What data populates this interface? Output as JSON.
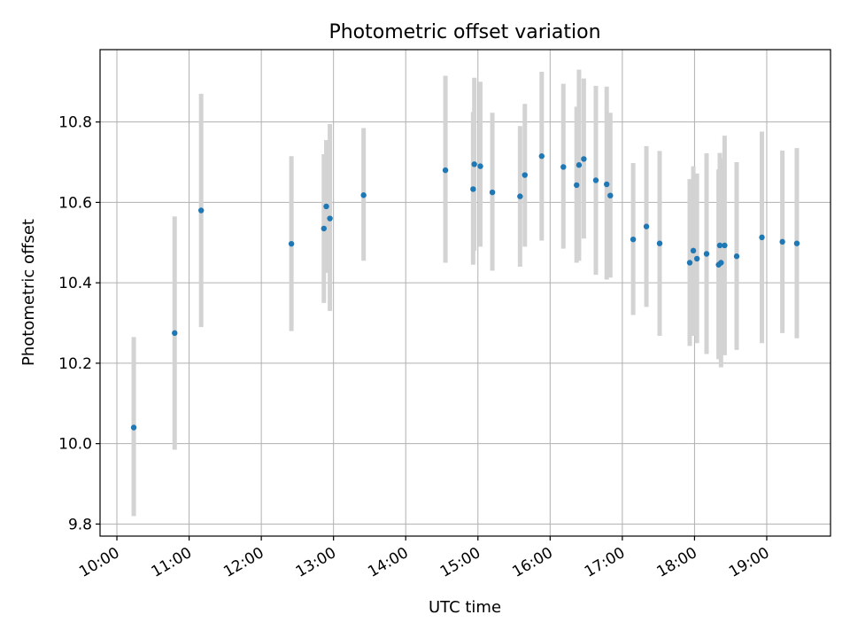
{
  "chart_data": {
    "type": "scatter",
    "title": "Photometric offset variation",
    "xlabel": "UTC time",
    "ylabel": "Photometric offset",
    "x_ticks": [
      "10:00",
      "11:00",
      "12:00",
      "13:00",
      "14:00",
      "15:00",
      "16:00",
      "17:00",
      "18:00",
      "19:00"
    ],
    "y_ticks": [
      "9.8",
      "10.0",
      "10.2",
      "10.4",
      "10.6",
      "10.8"
    ],
    "xlim": [
      "09:46",
      "19:53"
    ],
    "ylim": [
      9.77,
      10.98
    ],
    "grid": true,
    "colors": {
      "points": "#1f77b4",
      "error_bars": "#d3d3d3",
      "grid": "#b0b0b0"
    },
    "series": [
      {
        "points": [
          {
            "x": "10:14",
            "y": 10.04,
            "ylo": 9.82,
            "yhi": 10.265
          },
          {
            "x": "10:48",
            "y": 10.275,
            "ylo": 9.985,
            "yhi": 10.565
          },
          {
            "x": "11:10",
            "y": 10.58,
            "ylo": 10.29,
            "yhi": 10.87
          },
          {
            "x": "12:25",
            "y": 10.497,
            "ylo": 10.28,
            "yhi": 10.715
          },
          {
            "x": "12:52",
            "y": 10.535,
            "ylo": 10.35,
            "yhi": 10.72
          },
          {
            "x": "12:54",
            "y": 10.59,
            "ylo": 10.425,
            "yhi": 10.755
          },
          {
            "x": "12:57",
            "y": 10.56,
            "ylo": 10.33,
            "yhi": 10.795
          },
          {
            "x": "13:25",
            "y": 10.618,
            "ylo": 10.455,
            "yhi": 10.785
          },
          {
            "x": "14:33",
            "y": 10.68,
            "ylo": 10.45,
            "yhi": 10.915
          },
          {
            "x": "14:56",
            "y": 10.633,
            "ylo": 10.445,
            "yhi": 10.825
          },
          {
            "x": "14:57",
            "y": 10.695,
            "ylo": 10.48,
            "yhi": 10.91
          },
          {
            "x": "15:02",
            "y": 10.69,
            "ylo": 10.49,
            "yhi": 10.9
          },
          {
            "x": "15:12",
            "y": 10.625,
            "ylo": 10.43,
            "yhi": 10.823
          },
          {
            "x": "15:35",
            "y": 10.615,
            "ylo": 10.44,
            "yhi": 10.79
          },
          {
            "x": "15:39",
            "y": 10.668,
            "ylo": 10.49,
            "yhi": 10.845
          },
          {
            "x": "15:53",
            "y": 10.715,
            "ylo": 10.505,
            "yhi": 10.925
          },
          {
            "x": "16:11",
            "y": 10.688,
            "ylo": 10.485,
            "yhi": 10.895
          },
          {
            "x": "16:22",
            "y": 10.643,
            "ylo": 10.45,
            "yhi": 10.838
          },
          {
            "x": "16:24",
            "y": 10.693,
            "ylo": 10.455,
            "yhi": 10.93
          },
          {
            "x": "16:28",
            "y": 10.708,
            "ylo": 10.51,
            "yhi": 10.908
          },
          {
            "x": "16:38",
            "y": 10.655,
            "ylo": 10.42,
            "yhi": 10.89
          },
          {
            "x": "16:47",
            "y": 10.645,
            "ylo": 10.408,
            "yhi": 10.888
          },
          {
            "x": "16:50",
            "y": 10.617,
            "ylo": 10.413,
            "yhi": 10.823
          },
          {
            "x": "17:09",
            "y": 10.508,
            "ylo": 10.32,
            "yhi": 10.698
          },
          {
            "x": "17:20",
            "y": 10.54,
            "ylo": 10.34,
            "yhi": 10.74
          },
          {
            "x": "17:31",
            "y": 10.498,
            "ylo": 10.268,
            "yhi": 10.728
          },
          {
            "x": "17:56",
            "y": 10.45,
            "ylo": 10.243,
            "yhi": 10.658
          },
          {
            "x": "17:59",
            "y": 10.48,
            "ylo": 10.268,
            "yhi": 10.69
          },
          {
            "x": "18:02",
            "y": 10.46,
            "ylo": 10.25,
            "yhi": 10.672
          },
          {
            "x": "18:10",
            "y": 10.472,
            "ylo": 10.223,
            "yhi": 10.722
          },
          {
            "x": "18:20",
            "y": 10.445,
            "ylo": 10.21,
            "yhi": 10.682
          },
          {
            "x": "18:22",
            "y": 10.45,
            "ylo": 10.19,
            "yhi": 10.71
          },
          {
            "x": "18:21",
            "y": 10.493,
            "ylo": 10.263,
            "yhi": 10.723
          },
          {
            "x": "18:25",
            "y": 10.493,
            "ylo": 10.22,
            "yhi": 10.766
          },
          {
            "x": "18:35",
            "y": 10.466,
            "ylo": 10.233,
            "yhi": 10.7
          },
          {
            "x": "18:56",
            "y": 10.513,
            "ylo": 10.25,
            "yhi": 10.776
          },
          {
            "x": "19:13",
            "y": 10.502,
            "ylo": 10.275,
            "yhi": 10.729
          },
          {
            "x": "19:25",
            "y": 10.498,
            "ylo": 10.262,
            "yhi": 10.735
          }
        ]
      }
    ]
  }
}
